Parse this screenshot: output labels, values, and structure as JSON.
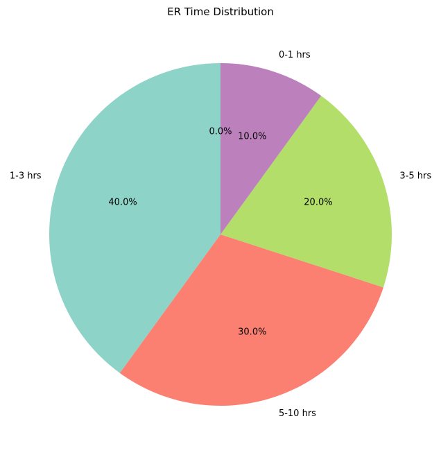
{
  "chart_data": {
    "type": "pie",
    "title": "ER Time Distribution",
    "start_angle_deg": 90,
    "direction": "counterclockwise",
    "autopct_format": "{:.1f}%",
    "slices": [
      {
        "label": "0-1 hrs",
        "value": 0.0,
        "color": "#c6d62a"
      },
      {
        "label": "1-3 hrs",
        "value": 40.0,
        "color": "#8dd3c7"
      },
      {
        "label": "5-10 hrs",
        "value": 30.0,
        "color": "#fb8072"
      },
      {
        "label": "3-5 hrs",
        "value": 20.0,
        "color": "#b3de69"
      },
      {
        "label": "0-1 hrs",
        "value": 10.0,
        "color": "#bc80bd"
      }
    ],
    "category_labels_shown": [
      "1-3 hrs",
      "5-10 hrs",
      "3-5 hrs",
      "0-1 hrs"
    ]
  }
}
